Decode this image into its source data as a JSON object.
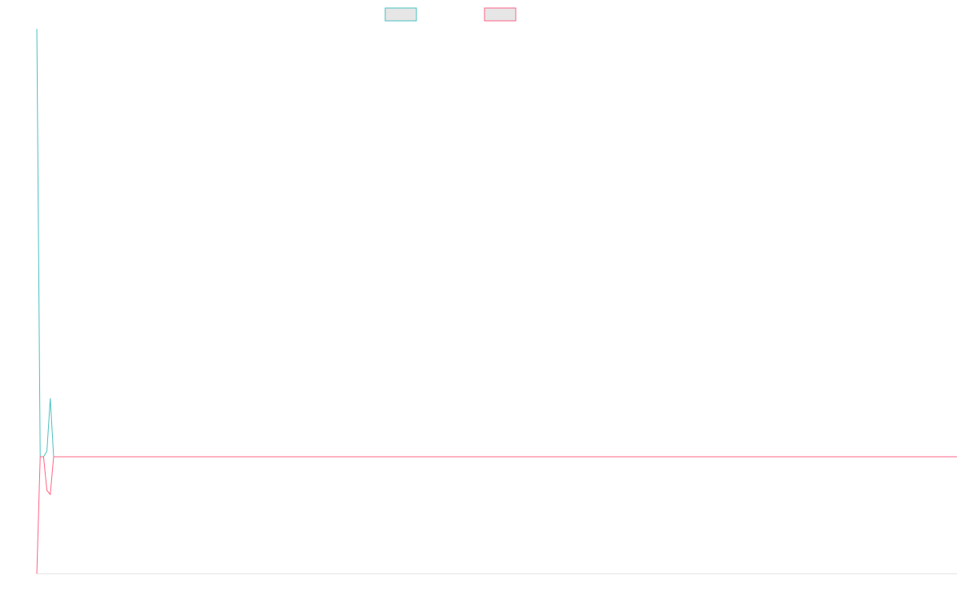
{
  "chart_data": {
    "type": "line",
    "x": [
      0,
      1,
      2,
      3,
      4,
      5,
      274
    ],
    "xlim": [
      0,
      274
    ],
    "ylim": [
      -14.6,
      53.4
    ],
    "series": [
      {
        "color": "#4bc0c0",
        "values": [
          53.4,
          0,
          0,
          0.7,
          7.3,
          0,
          0
        ]
      },
      {
        "color": "#ff6384",
        "values": [
          -14.6,
          0,
          0,
          -4.2,
          -4.7,
          0,
          0
        ]
      }
    ]
  }
}
